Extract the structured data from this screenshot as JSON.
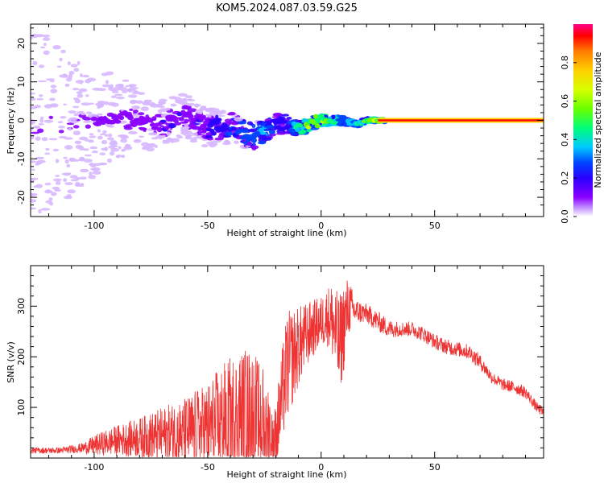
{
  "page_title": "KOM5.2024.087.03.59.G25",
  "chart_data": [
    {
      "id": "spectrogram",
      "type": "heatmap",
      "title": "KOM5.2024.087.03.59.G25",
      "xlabel": "Height of straight line (km)",
      "ylabel": "Frequency (Hz)",
      "xlim": [
        -128,
        98
      ],
      "ylim": [
        -25,
        25
      ],
      "x_ticks": [
        -100,
        -50,
        0,
        50
      ],
      "y_ticks": [
        -20,
        -10,
        0,
        10,
        20
      ],
      "grid": false,
      "colormap": [
        "#ffffff",
        "#8a00ff",
        "#2a00ff",
        "#0044ff",
        "#00c8ff",
        "#00ff7a",
        "#6aff00",
        "#d8ff00",
        "#ffd000",
        "#ff7a00",
        "#ff0000",
        "#ff0088"
      ],
      "colorbar": {
        "label": "Normalized spectral amplitude",
        "range": [
          0,
          1
        ],
        "ticks": [
          0.0,
          0.2,
          0.4,
          0.6,
          0.8
        ],
        "tick_labels": [
          "0.0",
          "0.2",
          "0.4",
          "0.6",
          "0.8"
        ]
      },
      "ridge": {
        "x": [
          -100,
          -90,
          -80,
          -70,
          -60,
          -50,
          -40,
          -35,
          -30,
          -25,
          -20,
          -15,
          -10,
          -5,
          0,
          5,
          10,
          15,
          20,
          25,
          50,
          98
        ],
        "freq": [
          -1,
          1,
          0,
          -1,
          1,
          -2,
          -2,
          -3,
          -4,
          -3,
          -1,
          -1,
          -2,
          -1,
          0,
          0,
          0,
          -1,
          0,
          0,
          0,
          0
        ],
        "amplitude": [
          0.08,
          0.1,
          0.1,
          0.12,
          0.12,
          0.16,
          0.22,
          0.25,
          0.3,
          0.28,
          0.2,
          0.2,
          0.42,
          0.55,
          0.55,
          0.45,
          0.3,
          0.4,
          0.45,
          0.6,
          0.95,
          0.95
        ]
      },
      "scatter_spread_hz": [
        {
          "x": -125,
          "spread": 25
        },
        {
          "x": -100,
          "spread": 14
        },
        {
          "x": -75,
          "spread": 7
        },
        {
          "x": -50,
          "spread": 5
        },
        {
          "x": -25,
          "spread": 3
        },
        {
          "x": 0,
          "spread": 1.5
        },
        {
          "x": 25,
          "spread": 0.5
        }
      ]
    },
    {
      "id": "snr",
      "type": "line",
      "xlabel": "Height of straight line (km)",
      "ylabel": "SNR (v/v)",
      "xlim": [
        -128,
        98
      ],
      "ylim": [
        0,
        380
      ],
      "x_ticks": [
        -100,
        -50,
        0,
        50
      ],
      "y_ticks": [
        100,
        200,
        300
      ],
      "grid": false,
      "line_color": "#ee3333",
      "series": [
        {
          "envelope": {
            "x": [
              -128,
              -115,
              -105,
              -100,
              -90,
              -80,
              -70,
              -60,
              -50,
              -45,
              -40,
              -35,
              -30,
              -25,
              -20,
              -18,
              -15,
              -10,
              -5,
              0,
              3,
              5,
              8,
              10,
              12,
              15,
              20,
              25,
              30,
              35,
              40,
              45,
              50,
              55,
              60,
              65,
              70,
              75,
              80,
              85,
              90,
              95,
              98
            ],
            "base": [
              15,
              15,
              20,
              25,
              35,
              40,
              45,
              50,
              60,
              70,
              80,
              90,
              95,
              70,
              40,
              100,
              180,
              220,
              250,
              270,
              280,
              270,
              220,
              260,
              300,
              290,
              285,
              270,
              255,
              255,
              255,
              245,
              230,
              220,
              215,
              210,
              190,
              160,
              145,
              140,
              130,
              100,
              90
            ],
            "noise": [
              6,
              6,
              10,
              20,
              30,
              40,
              55,
              70,
              90,
              110,
              120,
              130,
              120,
              110,
              60,
              90,
              110,
              80,
              60,
              50,
              60,
              80,
              100,
              90,
              60,
              25,
              20,
              20,
              18,
              15,
              15,
              15,
              15,
              15,
              15,
              15,
              15,
              12,
              12,
              12,
              12,
              10,
              10
            ]
          }
        }
      ]
    }
  ]
}
